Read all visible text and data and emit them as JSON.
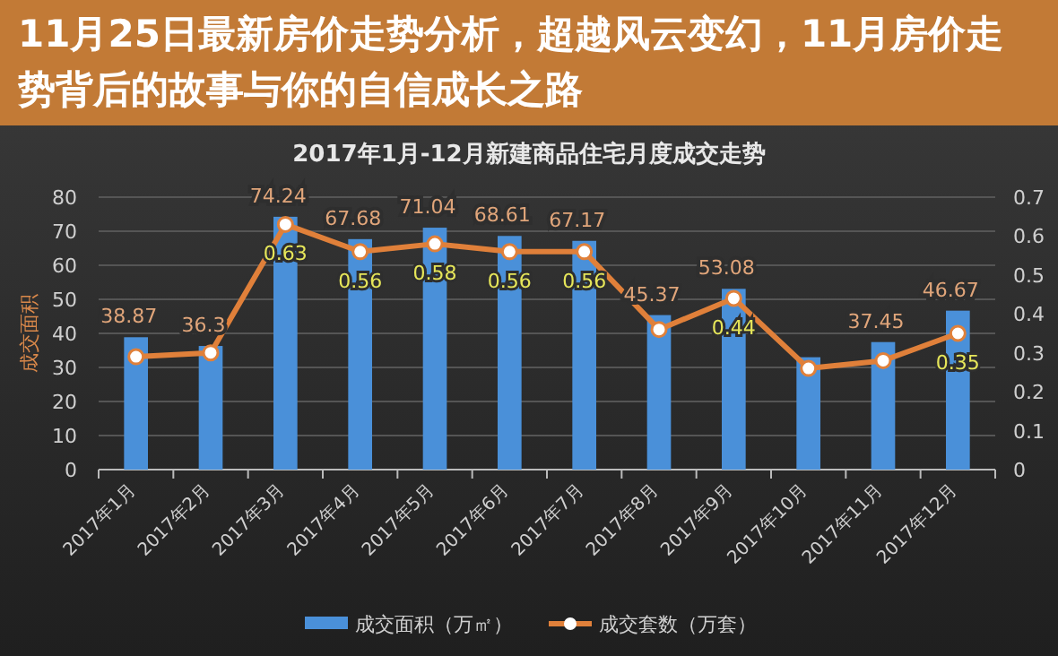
{
  "chart_data": {
    "type": "bar",
    "title": "2017年1月-12月新建商品住宅月度成交走势",
    "ylabel": "成交面积",
    "annotations": [
      "11月25日最新房价走势分析，超越风云变幻，11月房价走势背后的故事与你的自信成长之路"
    ],
    "categories": [
      "2017年1月",
      "2017年2月",
      "2017年3月",
      "2017年4月",
      "2017年5月",
      "2017年6月",
      "2017年7月",
      "2017年8月",
      "2017年9月",
      "2017年10月",
      "2017年11月",
      "2017年12月"
    ],
    "series": [
      {
        "name": "成交面积（万㎡）",
        "color": "#4a90d9",
        "values": [
          38.87,
          36.3,
          74.24,
          67.68,
          71.04,
          68.61,
          67.17,
          45.37,
          53.08,
          33,
          37.45,
          46.67
        ],
        "value_labels": [
          "38.87",
          "36.3",
          "74.24",
          "67.68",
          "71.04",
          "68.61",
          "67.17",
          "45.37",
          "53.08",
          null,
          "37.45",
          "46.67"
        ]
      },
      {
        "name": "成交套数（万套）",
        "type": "line",
        "axis": "y2",
        "color": "#e0803a",
        "marker": "circle",
        "values": [
          0.29,
          0.3,
          0.63,
          0.56,
          0.58,
          0.56,
          0.56,
          0.36,
          0.44,
          0.26,
          0.28,
          0.35
        ],
        "value_labels": [
          null,
          null,
          "0.63",
          "0.56",
          "0.58",
          "0.56",
          "0.56",
          null,
          "0.44",
          null,
          null,
          "0.35"
        ]
      }
    ],
    "ylim": [
      0,
      80
    ],
    "yticks": [
      0,
      10,
      20,
      30,
      40,
      50,
      60,
      70,
      80
    ],
    "y2lim": [
      0,
      0.7
    ],
    "y2ticks": [
      0,
      0.1,
      0.2,
      0.3,
      0.4,
      0.5,
      0.6,
      0.7
    ],
    "grid": "y",
    "legend": "bottom"
  }
}
